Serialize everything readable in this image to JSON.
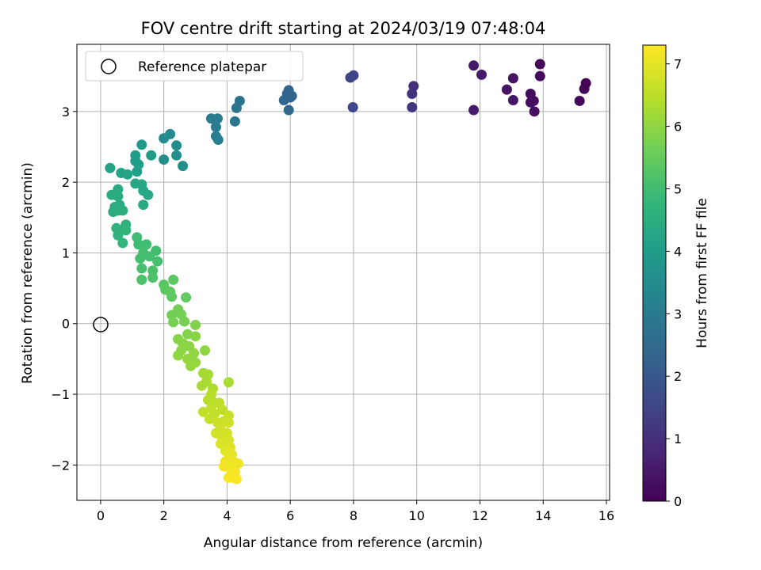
{
  "chart_data": {
    "type": "scatter",
    "title": "FOV centre drift starting at 2024/03/19 07:48:04",
    "xlabel": "Angular distance from reference (arcmin)",
    "ylabel": "Rotation from reference (arcmin)",
    "xlim": [
      -0.75,
      16.1
    ],
    "ylim": [
      -2.5,
      3.95
    ],
    "xticks": [
      0,
      2,
      4,
      6,
      8,
      10,
      12,
      14,
      16
    ],
    "yticks": [
      -2,
      -1,
      0,
      1,
      2,
      3
    ],
    "grid": true,
    "legend": {
      "placement": "upper-left",
      "entries": [
        "Reference platepar"
      ]
    },
    "reference_point": {
      "x": 0,
      "y": 0,
      "label": "Reference platepar"
    },
    "colorbar": {
      "label": "Hours from first FF file",
      "range": [
        0,
        7.3
      ],
      "ticks": [
        0,
        1,
        2,
        3,
        4,
        5,
        6,
        7
      ],
      "colormap": [
        "#440154",
        "#482878",
        "#3e4989",
        "#31688e",
        "#26828e",
        "#1f9e89",
        "#35b779",
        "#6ece58",
        "#b5de2b",
        "#fde725"
      ]
    },
    "points": [
      {
        "x": 15.35,
        "y": 3.4,
        "h": 0.05
      },
      {
        "x": 15.3,
        "y": 3.32,
        "h": 0.08
      },
      {
        "x": 15.15,
        "y": 3.15,
        "h": 0.1
      },
      {
        "x": 13.9,
        "y": 3.67,
        "h": 0.15
      },
      {
        "x": 13.9,
        "y": 3.5,
        "h": 0.18
      },
      {
        "x": 13.6,
        "y": 3.25,
        "h": 0.2
      },
      {
        "x": 13.7,
        "y": 3.15,
        "h": 0.22
      },
      {
        "x": 13.6,
        "y": 3.13,
        "h": 0.25
      },
      {
        "x": 13.72,
        "y": 3.0,
        "h": 0.28
      },
      {
        "x": 13.05,
        "y": 3.47,
        "h": 0.35
      },
      {
        "x": 12.85,
        "y": 3.31,
        "h": 0.38
      },
      {
        "x": 13.05,
        "y": 3.16,
        "h": 0.4
      },
      {
        "x": 11.8,
        "y": 3.65,
        "h": 0.5
      },
      {
        "x": 12.05,
        "y": 3.52,
        "h": 0.52
      },
      {
        "x": 11.8,
        "y": 3.02,
        "h": 0.55
      },
      {
        "x": 9.9,
        "y": 3.36,
        "h": 1.0
      },
      {
        "x": 9.85,
        "y": 3.25,
        "h": 1.05
      },
      {
        "x": 9.85,
        "y": 3.06,
        "h": 1.1
      },
      {
        "x": 8.0,
        "y": 3.51,
        "h": 1.5
      },
      {
        "x": 7.9,
        "y": 3.48,
        "h": 1.55
      },
      {
        "x": 7.98,
        "y": 3.06,
        "h": 1.6
      },
      {
        "x": 5.95,
        "y": 3.3,
        "h": 2.3
      },
      {
        "x": 5.9,
        "y": 3.25,
        "h": 2.32
      },
      {
        "x": 6.05,
        "y": 3.22,
        "h": 2.35
      },
      {
        "x": 5.8,
        "y": 3.16,
        "h": 2.38
      },
      {
        "x": 5.95,
        "y": 3.02,
        "h": 2.4
      },
      {
        "x": 6.0,
        "y": 3.2,
        "h": 2.36
      },
      {
        "x": 4.4,
        "y": 3.15,
        "h": 2.8
      },
      {
        "x": 4.3,
        "y": 3.05,
        "h": 2.82
      },
      {
        "x": 4.25,
        "y": 2.86,
        "h": 2.85
      },
      {
        "x": 3.5,
        "y": 2.9,
        "h": 3.0
      },
      {
        "x": 3.7,
        "y": 2.9,
        "h": 3.02
      },
      {
        "x": 3.65,
        "y": 2.78,
        "h": 3.04
      },
      {
        "x": 3.65,
        "y": 2.65,
        "h": 3.06
      },
      {
        "x": 3.72,
        "y": 2.6,
        "h": 3.08
      },
      {
        "x": 2.2,
        "y": 2.68,
        "h": 3.5
      },
      {
        "x": 2.0,
        "y": 2.62,
        "h": 3.52
      },
      {
        "x": 2.4,
        "y": 2.52,
        "h": 3.55
      },
      {
        "x": 2.4,
        "y": 2.38,
        "h": 3.58
      },
      {
        "x": 2.0,
        "y": 2.32,
        "h": 3.6
      },
      {
        "x": 2.6,
        "y": 2.23,
        "h": 3.62
      },
      {
        "x": 1.3,
        "y": 2.53,
        "h": 4.0
      },
      {
        "x": 1.6,
        "y": 2.38,
        "h": 4.02
      },
      {
        "x": 1.1,
        "y": 2.38,
        "h": 4.05
      },
      {
        "x": 1.1,
        "y": 2.3,
        "h": 4.08
      },
      {
        "x": 1.2,
        "y": 2.25,
        "h": 4.1
      },
      {
        "x": 1.15,
        "y": 2.15,
        "h": 4.12
      },
      {
        "x": 0.3,
        "y": 2.2,
        "h": 4.2
      },
      {
        "x": 0.65,
        "y": 2.13,
        "h": 4.22
      },
      {
        "x": 0.85,
        "y": 2.11,
        "h": 4.24
      },
      {
        "x": 1.1,
        "y": 1.98,
        "h": 4.3
      },
      {
        "x": 1.3,
        "y": 1.97,
        "h": 4.32
      },
      {
        "x": 1.35,
        "y": 1.88,
        "h": 4.34
      },
      {
        "x": 1.5,
        "y": 1.82,
        "h": 4.36
      },
      {
        "x": 1.35,
        "y": 1.68,
        "h": 4.4
      },
      {
        "x": 0.55,
        "y": 1.9,
        "h": 4.45
      },
      {
        "x": 0.35,
        "y": 1.82,
        "h": 4.47
      },
      {
        "x": 0.55,
        "y": 1.8,
        "h": 4.49
      },
      {
        "x": 0.6,
        "y": 1.68,
        "h": 4.51
      },
      {
        "x": 0.45,
        "y": 1.65,
        "h": 4.53
      },
      {
        "x": 0.4,
        "y": 1.58,
        "h": 4.55
      },
      {
        "x": 0.7,
        "y": 1.6,
        "h": 4.57
      },
      {
        "x": 0.55,
        "y": 1.6,
        "h": 4.58
      },
      {
        "x": 0.8,
        "y": 1.4,
        "h": 4.7
      },
      {
        "x": 0.5,
        "y": 1.35,
        "h": 4.72
      },
      {
        "x": 0.55,
        "y": 1.25,
        "h": 4.74
      },
      {
        "x": 0.8,
        "y": 1.32,
        "h": 4.76
      },
      {
        "x": 0.7,
        "y": 1.14,
        "h": 4.78
      },
      {
        "x": 1.15,
        "y": 1.22,
        "h": 5.0
      },
      {
        "x": 1.2,
        "y": 1.12,
        "h": 5.02
      },
      {
        "x": 1.45,
        "y": 1.12,
        "h": 5.04
      },
      {
        "x": 1.75,
        "y": 1.03,
        "h": 5.06
      },
      {
        "x": 1.35,
        "y": 1.0,
        "h": 5.08
      },
      {
        "x": 1.25,
        "y": 0.92,
        "h": 5.1
      },
      {
        "x": 1.55,
        "y": 0.95,
        "h": 5.12
      },
      {
        "x": 1.8,
        "y": 0.88,
        "h": 5.14
      },
      {
        "x": 1.3,
        "y": 0.78,
        "h": 5.16
      },
      {
        "x": 1.65,
        "y": 0.75,
        "h": 5.18
      },
      {
        "x": 1.3,
        "y": 0.62,
        "h": 5.2
      },
      {
        "x": 1.65,
        "y": 0.65,
        "h": 5.22
      },
      {
        "x": 2.0,
        "y": 0.55,
        "h": 5.4
      },
      {
        "x": 2.3,
        "y": 0.62,
        "h": 5.42
      },
      {
        "x": 2.05,
        "y": 0.48,
        "h": 5.44
      },
      {
        "x": 2.2,
        "y": 0.45,
        "h": 5.46
      },
      {
        "x": 2.25,
        "y": 0.38,
        "h": 5.48
      },
      {
        "x": 2.7,
        "y": 0.37,
        "h": 5.5
      },
      {
        "x": 2.45,
        "y": 0.2,
        "h": 5.7
      },
      {
        "x": 2.25,
        "y": 0.12,
        "h": 5.72
      },
      {
        "x": 2.55,
        "y": 0.13,
        "h": 5.74
      },
      {
        "x": 2.3,
        "y": 0.02,
        "h": 5.76
      },
      {
        "x": 2.65,
        "y": 0.03,
        "h": 5.78
      },
      {
        "x": 3.0,
        "y": -0.02,
        "h": 5.9
      },
      {
        "x": 2.75,
        "y": -0.15,
        "h": 5.92
      },
      {
        "x": 2.45,
        "y": -0.22,
        "h": 5.94
      },
      {
        "x": 3.0,
        "y": -0.18,
        "h": 5.96
      },
      {
        "x": 2.6,
        "y": -0.28,
        "h": 5.98
      },
      {
        "x": 2.8,
        "y": -0.32,
        "h": 6.0
      },
      {
        "x": 2.55,
        "y": -0.38,
        "h": 6.02
      },
      {
        "x": 3.3,
        "y": -0.38,
        "h": 6.04
      },
      {
        "x": 2.45,
        "y": -0.45,
        "h": 6.06
      },
      {
        "x": 2.95,
        "y": -0.42,
        "h": 6.08
      },
      {
        "x": 2.75,
        "y": -0.5,
        "h": 6.1
      },
      {
        "x": 3.0,
        "y": -0.55,
        "h": 6.12
      },
      {
        "x": 2.85,
        "y": -0.6,
        "h": 6.14
      },
      {
        "x": 3.25,
        "y": -0.7,
        "h": 6.3
      },
      {
        "x": 3.4,
        "y": -0.72,
        "h": 6.32
      },
      {
        "x": 3.35,
        "y": -0.82,
        "h": 6.34
      },
      {
        "x": 3.2,
        "y": -0.88,
        "h": 6.36
      },
      {
        "x": 4.05,
        "y": -0.83,
        "h": 6.38
      },
      {
        "x": 3.55,
        "y": -0.92,
        "h": 6.4
      },
      {
        "x": 3.5,
        "y": -1.0,
        "h": 6.5
      },
      {
        "x": 3.4,
        "y": -1.08,
        "h": 6.52
      },
      {
        "x": 3.6,
        "y": -1.12,
        "h": 6.54
      },
      {
        "x": 3.75,
        "y": -1.12,
        "h": 6.56
      },
      {
        "x": 3.5,
        "y": -1.2,
        "h": 6.58
      },
      {
        "x": 3.25,
        "y": -1.25,
        "h": 6.6
      },
      {
        "x": 3.85,
        "y": -1.22,
        "h": 6.62
      },
      {
        "x": 3.6,
        "y": -1.28,
        "h": 6.64
      },
      {
        "x": 3.45,
        "y": -1.35,
        "h": 6.66
      },
      {
        "x": 4.05,
        "y": -1.3,
        "h": 6.7
      },
      {
        "x": 3.7,
        "y": -1.4,
        "h": 6.72
      },
      {
        "x": 3.9,
        "y": -1.38,
        "h": 6.74
      },
      {
        "x": 4.05,
        "y": -1.4,
        "h": 6.76
      },
      {
        "x": 3.8,
        "y": -1.5,
        "h": 6.8
      },
      {
        "x": 3.65,
        "y": -1.55,
        "h": 6.82
      },
      {
        "x": 4.0,
        "y": -1.55,
        "h": 6.84
      },
      {
        "x": 3.85,
        "y": -1.62,
        "h": 6.86
      },
      {
        "x": 4.05,
        "y": -1.65,
        "h": 6.88
      },
      {
        "x": 3.8,
        "y": -1.7,
        "h": 6.9
      },
      {
        "x": 4.1,
        "y": -1.75,
        "h": 6.95
      },
      {
        "x": 3.95,
        "y": -1.8,
        "h": 7.0
      },
      {
        "x": 4.15,
        "y": -1.85,
        "h": 7.05
      },
      {
        "x": 4.05,
        "y": -1.9,
        "h": 7.08
      },
      {
        "x": 3.95,
        "y": -1.95,
        "h": 7.1
      },
      {
        "x": 4.2,
        "y": -1.95,
        "h": 7.12
      },
      {
        "x": 4.35,
        "y": -1.98,
        "h": 7.14
      },
      {
        "x": 3.9,
        "y": -2.02,
        "h": 7.16
      },
      {
        "x": 4.1,
        "y": -2.05,
        "h": 7.18
      },
      {
        "x": 4.25,
        "y": -2.1,
        "h": 7.2
      },
      {
        "x": 4.05,
        "y": -2.18,
        "h": 7.22
      },
      {
        "x": 4.3,
        "y": -2.2,
        "h": 7.25
      },
      {
        "x": 4.2,
        "y": -2.18,
        "h": 7.26
      }
    ]
  }
}
